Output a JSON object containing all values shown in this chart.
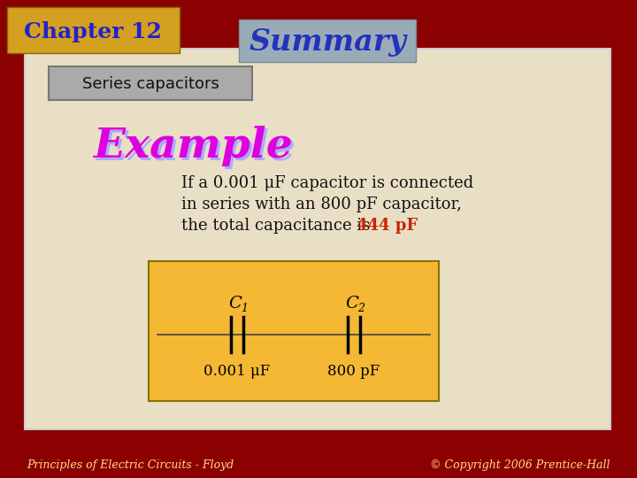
{
  "bg_color": "#8B0000",
  "main_panel_color": "#E8DFC5",
  "chapter_box_color": "#D4A020",
  "chapter_box_text": "Chapter 12",
  "chapter_box_text_color": "#2222CC",
  "summary_box_color": "#9AABB8",
  "summary_text": "Summary",
  "summary_text_color": "#2233BB",
  "series_cap_box_color": "#AAAAAA",
  "series_cap_text": "Series capacitors",
  "example_text": "Example",
  "example_color": "#DD00DD",
  "example_shadow_color": "#AAAAFF",
  "body_text_line1": "If a 0.001 μF capacitor is connected",
  "body_text_line2": "in series with an 800 pF capacitor,",
  "body_text_line3_pre": "the total capacitance is  ",
  "body_text_line3_highlight": "444 pF",
  "body_text_color": "#111111",
  "highlight_color": "#CC2200",
  "circuit_box_color": "#F5B835",
  "circuit_box_edge": "#8B7000",
  "c1_label": "C",
  "c1_sub": "1",
  "c2_label": "C",
  "c2_sub": "2",
  "c1_value": "0.001 μF",
  "c2_value": "800 pF",
  "footer_left": "Principles of Electric Circuits - Floyd",
  "footer_right": "© Copyright 2006 Prentice-Hall",
  "footer_color": "#FFDD88"
}
